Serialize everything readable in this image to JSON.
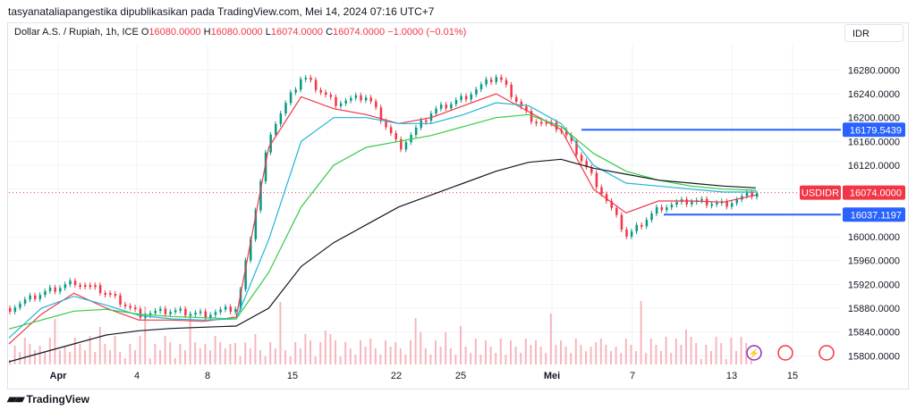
{
  "caption": "tasyanataliapangestika dipublikasikan pada TradingView.com, Mei 14, 2024 07:16 UTC+7",
  "legend": {
    "symbol": "Dollar A.S. / Rupiah, 1h, ICE",
    "o_label": "O",
    "o_value": "16080.0000",
    "h_label": "H",
    "h_value": "16080.0000",
    "l_label": "L",
    "l_value": "16074.0000",
    "c_label": "C",
    "c_value": "16074.0000",
    "change": "−1.0000 (−0.01%)"
  },
  "currency": "IDR",
  "brand": "TradingView",
  "colors": {
    "up": "#089981",
    "down": "#f23645",
    "ma_red": "#f23645",
    "ma_cyan": "#22b5d6",
    "ma_green": "#33cc44",
    "ma_black": "#131722",
    "hline": "#2962ff",
    "volume": "#f5a5ab"
  },
  "chart_data": {
    "type": "line",
    "title": "Dollar A.S. / Rupiah, 1h, ICE",
    "x_ticks": [
      "Apr",
      "4",
      "8",
      "15",
      "22",
      "25",
      "Mei",
      "7",
      "13",
      "15"
    ],
    "y_ticks": [
      "16280.0000",
      "16240.0000",
      "16200.0000",
      "16160.0000",
      "16120.0000",
      "16080.0000",
      "16000.0000",
      "15960.0000",
      "15920.0000",
      "15880.0000",
      "15840.0000",
      "15800.0000"
    ],
    "ylim": [
      15790,
      16300
    ],
    "last_price_label": "USDIDR",
    "last_price": 16074.0,
    "horizontal_levels": [
      {
        "value": 16179.5439,
        "label": "16179.5439"
      },
      {
        "value": 16037.1197,
        "label": "16037.1197"
      }
    ],
    "price_series": [
      [
        "Apr",
        15880
      ],
      [
        "Apr",
        15905
      ],
      [
        "4",
        15925
      ],
      [
        "4",
        15905
      ],
      [
        "8",
        15870
      ],
      [
        "8",
        15875
      ],
      [
        "15",
        15870
      ],
      [
        "15",
        15880
      ],
      [
        "15",
        16175
      ],
      [
        "22",
        16270
      ],
      [
        "22",
        16225
      ],
      [
        "22",
        16235
      ],
      [
        "25",
        16150
      ],
      [
        "25",
        16210
      ],
      [
        "25",
        16235
      ],
      [
        "Mei",
        16270
      ],
      [
        "Mei",
        16200
      ],
      [
        "Mei",
        16180
      ],
      [
        "Mei",
        16095
      ],
      [
        "7",
        16000
      ],
      [
        "7",
        16050
      ],
      [
        "7",
        16060
      ],
      [
        "13",
        16055
      ],
      [
        "13",
        16074
      ]
    ],
    "series": [
      {
        "name": "",
        "color": "#f23645",
        "values": [
          15820,
          15870,
          15905,
          15880,
          15860,
          15860,
          15858,
          15865,
          16150,
          16235,
          16215,
          16205,
          16190,
          16200,
          16220,
          16240,
          16210,
          16180,
          16080,
          16040,
          16060,
          16060,
          16058,
          16070
        ]
      },
      {
        "name": "",
        "color": "#22b5d6",
        "values": [
          15830,
          15880,
          15900,
          15885,
          15868,
          15862,
          15860,
          15862,
          15995,
          16160,
          16200,
          16200,
          16190,
          16190,
          16205,
          16225,
          16220,
          16190,
          16120,
          16090,
          16085,
          16080,
          16075,
          16075
        ]
      },
      {
        "name": "",
        "color": "#33cc44",
        "values": [
          15845,
          15860,
          15875,
          15878,
          15870,
          15866,
          15864,
          15862,
          15940,
          16050,
          16120,
          16150,
          16160,
          16170,
          16185,
          16200,
          16205,
          16185,
          16140,
          16110,
          16095,
          16085,
          16080,
          16078
        ]
      },
      {
        "name": "",
        "color": "#131722",
        "values": [
          15790,
          15805,
          15820,
          15835,
          15842,
          15846,
          15848,
          15850,
          15880,
          15950,
          15990,
          16020,
          16050,
          16070,
          16090,
          16110,
          16125,
          16130,
          16115,
          16105,
          16095,
          16090,
          16085,
          16082
        ]
      }
    ]
  }
}
